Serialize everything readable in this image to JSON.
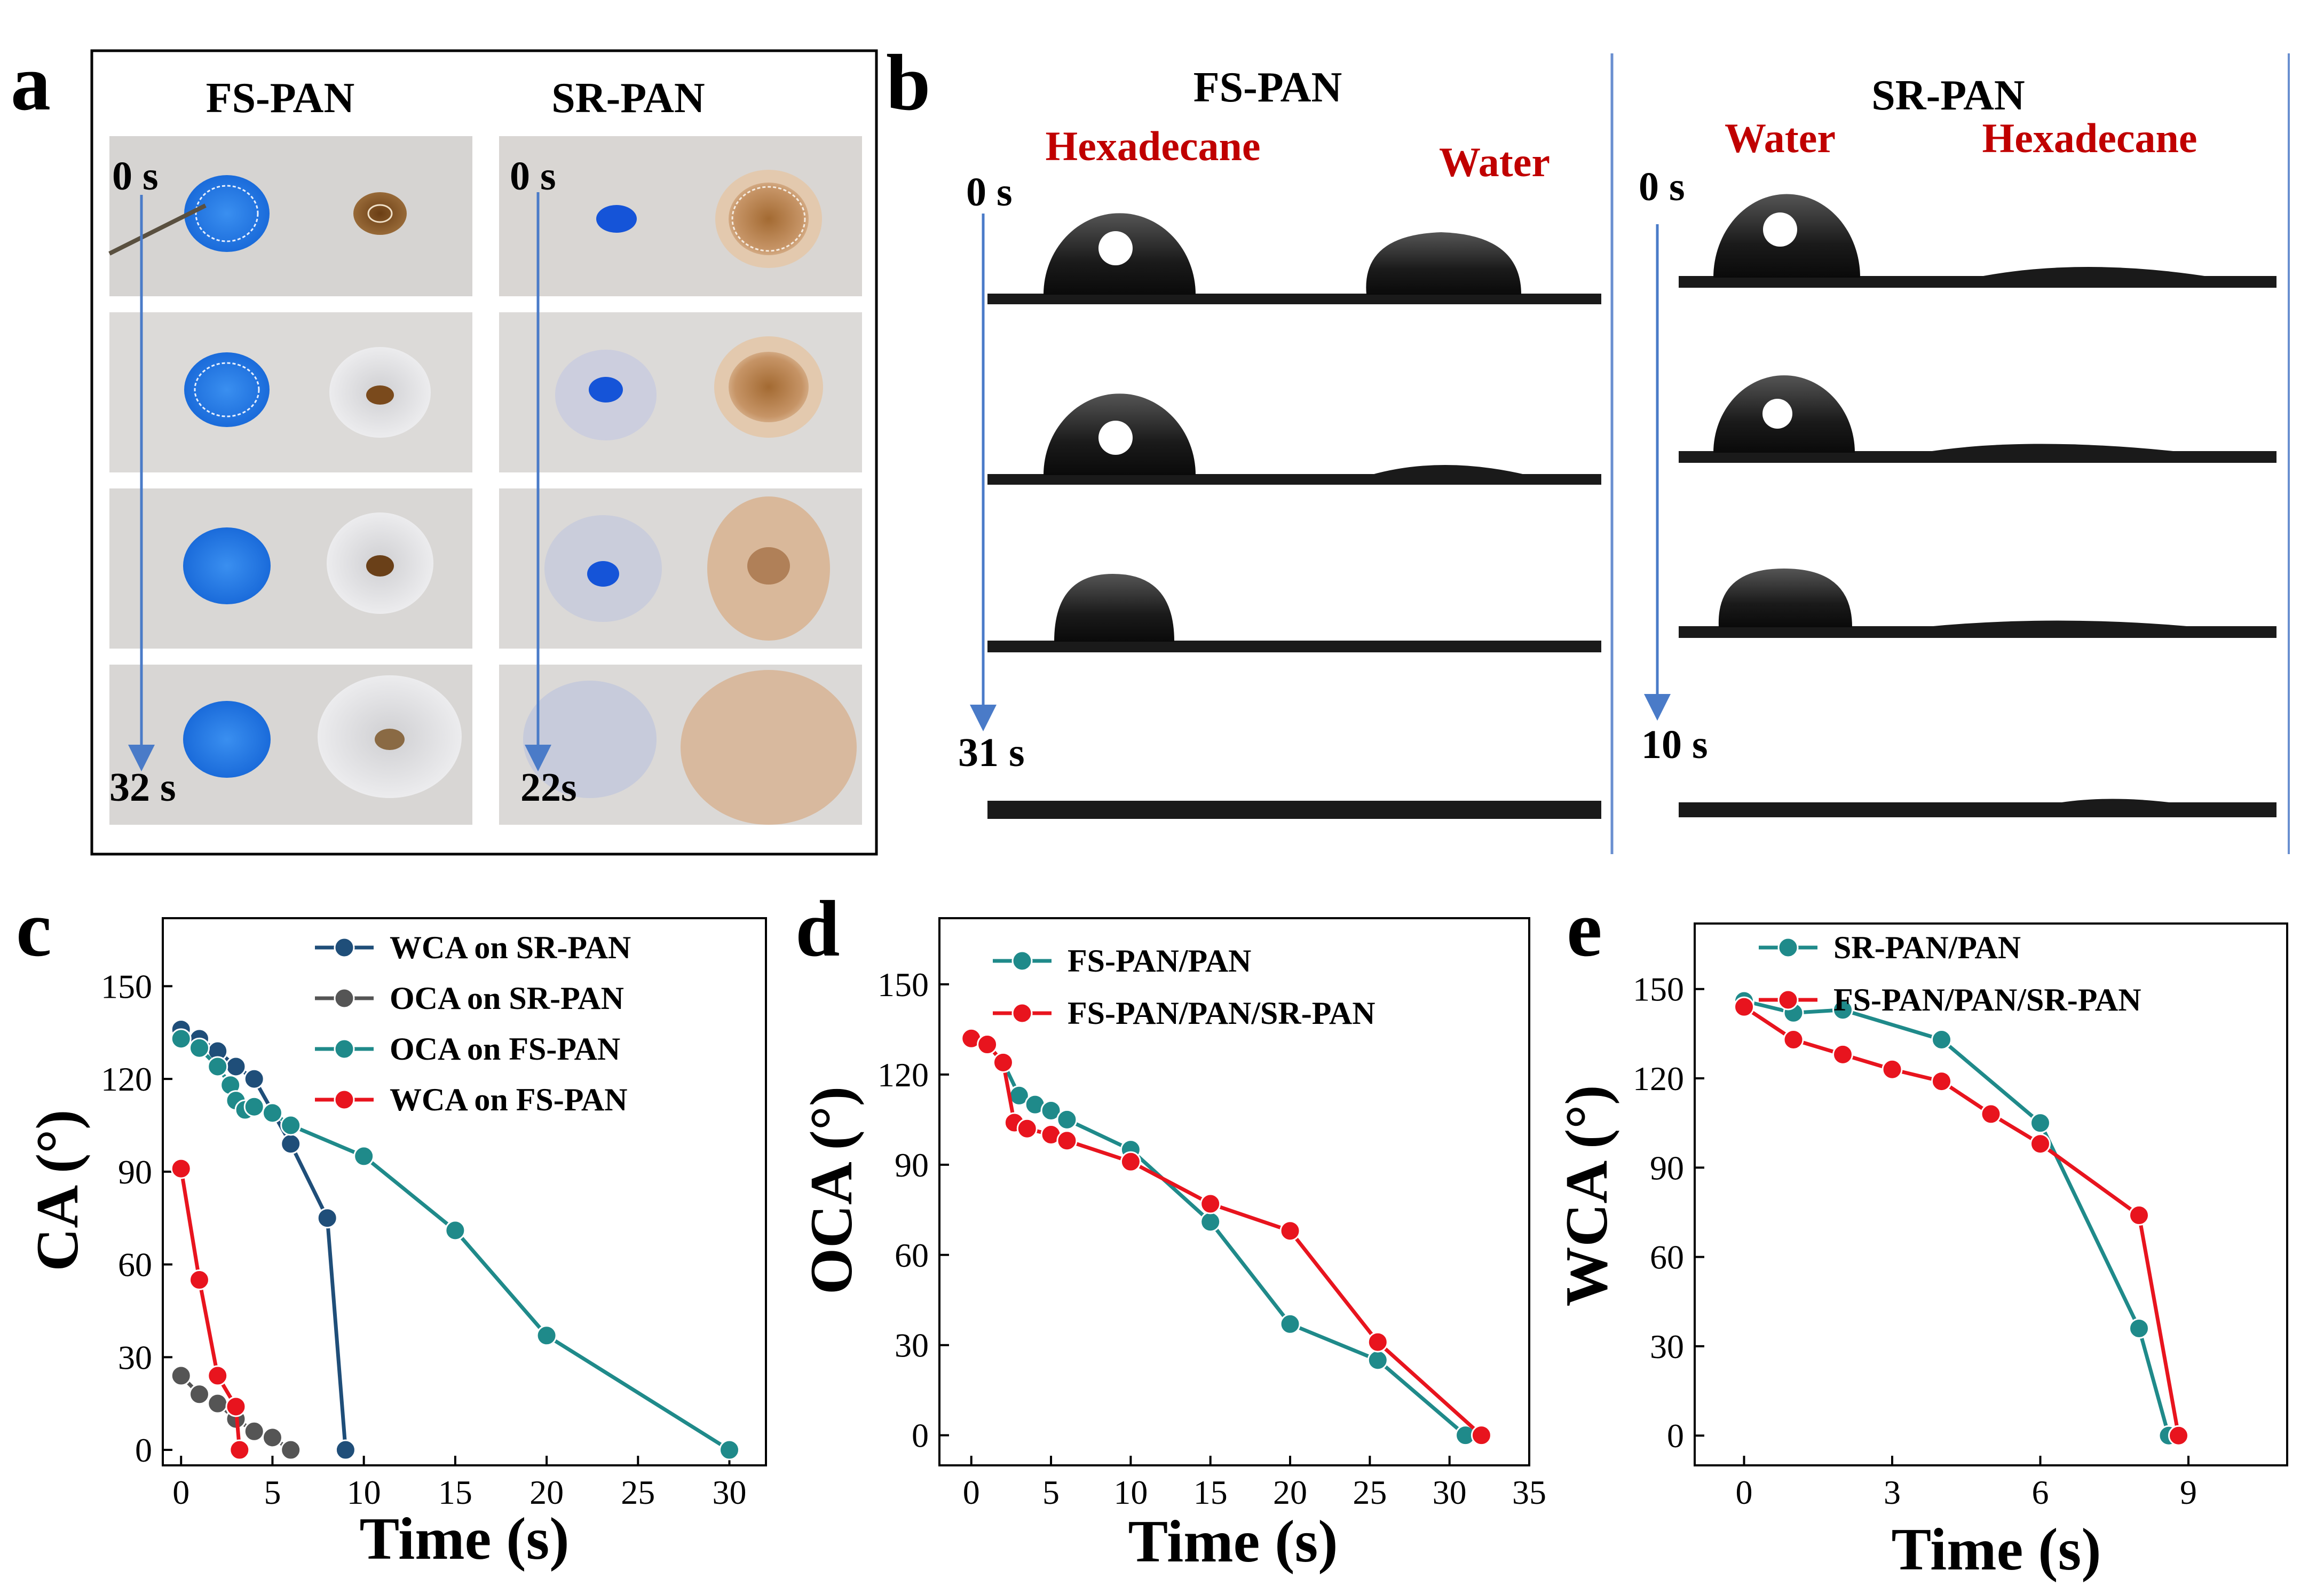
{
  "panel_labels": {
    "a": "a",
    "b": "b",
    "c": "c",
    "d": "d",
    "e": "e"
  },
  "panel_a": {
    "col_fs": "FS-PAN",
    "col_sr": "SR-PAN",
    "fs_start": "0 s",
    "fs_end": "32 s",
    "sr_start": "0 s",
    "sr_end": "22s"
  },
  "panel_b": {
    "fs_title": "FS-PAN",
    "fs_liquid1": "Hexadecane",
    "fs_liquid2": "Water",
    "fs_start": "0 s",
    "fs_end": "31 s",
    "sr_title": "SR-PAN",
    "sr_liquid1": "Water",
    "sr_liquid2": "Hexadecane",
    "sr_start": "0 s",
    "sr_end": "10 s"
  },
  "colors": {
    "navy": "#1f4e79",
    "gray": "#555555",
    "teal": "#1f8a8a",
    "red": "#e8141e",
    "arrow": "#4a7bc8",
    "label_red": "#c00000"
  },
  "chart_data": [
    {
      "id": "c",
      "type": "line",
      "xlabel": "Time (s)",
      "ylabel": "CA (°)",
      "xlim": [
        -1,
        32
      ],
      "ylim": [
        -5,
        172
      ],
      "xticks": [
        0,
        5,
        10,
        15,
        20,
        25,
        30
      ],
      "yticks": [
        0,
        30,
        60,
        90,
        120,
        150
      ],
      "legend": "top-right",
      "series": [
        {
          "name": "WCA on SR-PAN",
          "color": "#1f4e79",
          "x": [
            0,
            1,
            2,
            3,
            4,
            6,
            8,
            9
          ],
          "y": [
            136,
            133,
            129,
            124,
            120,
            99,
            75,
            0
          ]
        },
        {
          "name": "OCA on SR-PAN",
          "color": "#555555",
          "x": [
            0,
            1,
            2,
            3,
            4,
            5,
            6
          ],
          "y": [
            24,
            18,
            15,
            10,
            6,
            4,
            0
          ]
        },
        {
          "name": "OCA on FS-PAN",
          "color": "#1f8a8a",
          "x": [
            0,
            1,
            2,
            2.7,
            3,
            3.5,
            4,
            5,
            6,
            10,
            15,
            20,
            30
          ],
          "y": [
            133,
            130,
            124,
            118,
            113,
            110,
            111,
            109,
            105,
            95,
            71,
            37,
            0
          ]
        },
        {
          "name": "WCA on FS-PAN",
          "color": "#e8141e",
          "x": [
            0,
            1,
            2,
            3,
            3.2
          ],
          "y": [
            91,
            55,
            24,
            14,
            0
          ]
        }
      ]
    },
    {
      "id": "d",
      "type": "line",
      "xlabel": "Time (s)",
      "ylabel": "OCA (°)",
      "xlim": [
        -2,
        35
      ],
      "ylim": [
        -10,
        172
      ],
      "xticks": [
        0,
        5,
        10,
        15,
        20,
        25,
        30,
        35
      ],
      "yticks": [
        0,
        30,
        60,
        90,
        120,
        150
      ],
      "legend": "top-right",
      "series": [
        {
          "name": "FS-PAN/PAN",
          "color": "#1f8a8a",
          "x": [
            0,
            1,
            2,
            3,
            4,
            5,
            6,
            10,
            15,
            20,
            25.5,
            31
          ],
          "y": [
            132,
            130,
            124,
            113,
            110,
            108,
            105,
            95,
            71,
            37,
            25,
            0
          ]
        },
        {
          "name": "FS-PAN/PAN/SR-PAN",
          "color": "#e8141e",
          "x": [
            0,
            1,
            2,
            2.7,
            3.5,
            5,
            6,
            10,
            15,
            20,
            25.5,
            32
          ],
          "y": [
            132,
            130,
            124,
            104,
            102,
            100,
            98,
            91,
            77,
            68,
            31,
            0
          ]
        }
      ]
    },
    {
      "id": "e",
      "type": "line",
      "xlabel": "Time (s)",
      "ylabel": "WCA (°)",
      "xlim": [
        -1,
        11
      ],
      "ylim": [
        -10,
        172
      ],
      "xticks": [
        0,
        3,
        6,
        9
      ],
      "yticks": [
        0,
        30,
        60,
        90,
        120,
        150
      ],
      "legend": "top-right",
      "series": [
        {
          "name": "SR-PAN/PAN",
          "color": "#1f8a8a",
          "x": [
            0,
            1,
            2,
            4,
            6,
            8,
            8.6
          ],
          "y": [
            146,
            142,
            143,
            133,
            105,
            36,
            0
          ]
        },
        {
          "name": "FS-PAN/PAN/SR-PAN",
          "color": "#e8141e",
          "x": [
            0,
            1,
            2,
            3,
            4,
            5,
            6,
            8,
            8.8
          ],
          "y": [
            144,
            133,
            128,
            123,
            119,
            108,
            98,
            74,
            0
          ]
        }
      ]
    }
  ]
}
